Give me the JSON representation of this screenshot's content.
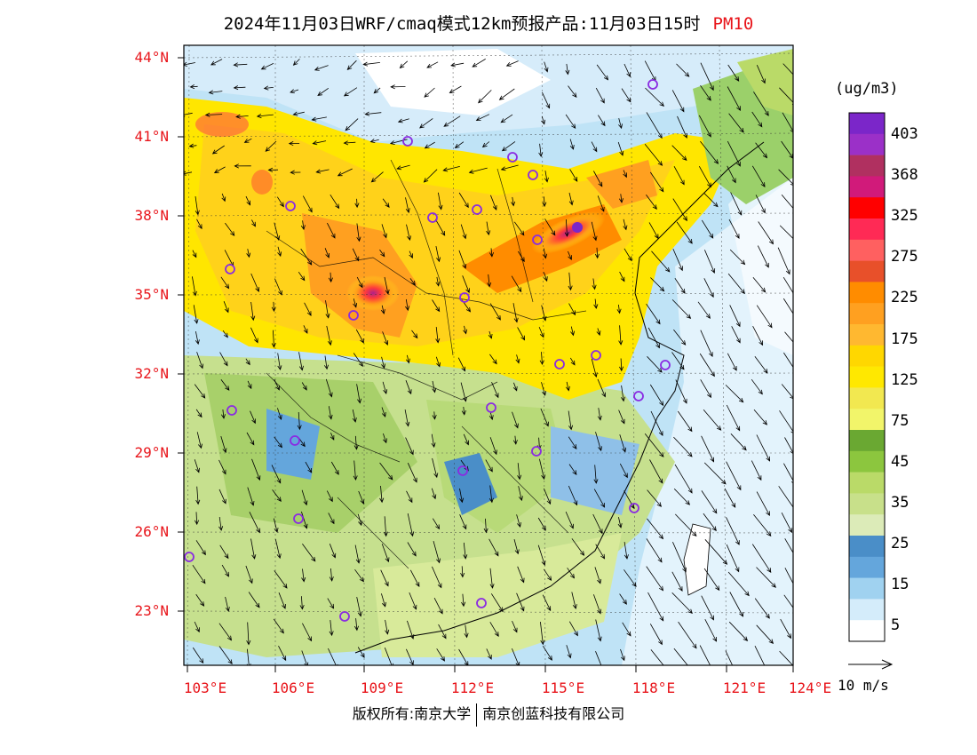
{
  "title": {
    "text": "2024年11月03日WRF/cmaq模式12km预报产品:11月03日15时",
    "pollutant": "PM10",
    "pollutant_color": "#e8141a"
  },
  "map": {
    "lat_labels": [
      "44°N",
      "41°N",
      "38°N",
      "35°N",
      "32°N",
      "29°N",
      "26°N",
      "23°N"
    ],
    "lon_labels": [
      "103°E",
      "106°E",
      "109°E",
      "112°E",
      "115°E",
      "118°E",
      "121°E",
      "124°E"
    ],
    "extent": {
      "lon": [
        103,
        124
      ],
      "lat": [
        21,
        44.5
      ]
    }
  },
  "colorbar": {
    "unit": "(ug/m3)",
    "labels": [
      "403",
      "368",
      "325",
      "275",
      "225",
      "175",
      "125",
      "75",
      "45",
      "35",
      "25",
      "15",
      "5"
    ],
    "colors_top_to_bottom": [
      "#7b26c9",
      "#9b30c8",
      "#b03060",
      "#d11a7a",
      "#ff0000",
      "#ff2a55",
      "#ff6060",
      "#e8502a",
      "#ff8c00",
      "#ffa020",
      "#ffb830",
      "#ffd700",
      "#ffe800",
      "#f2e850",
      "#f2f56a",
      "#6aa832",
      "#8cc63e",
      "#bada68",
      "#c8e08a",
      "#dcebb8",
      "#4a8ec8",
      "#64a6dc",
      "#a0d2f0",
      "#d4ecfa",
      "#ffffff"
    ]
  },
  "wind": {
    "label": "10 m/s"
  },
  "footer": {
    "left": "版权所有:南京大学",
    "right": "南京创蓝科技有限公司"
  }
}
